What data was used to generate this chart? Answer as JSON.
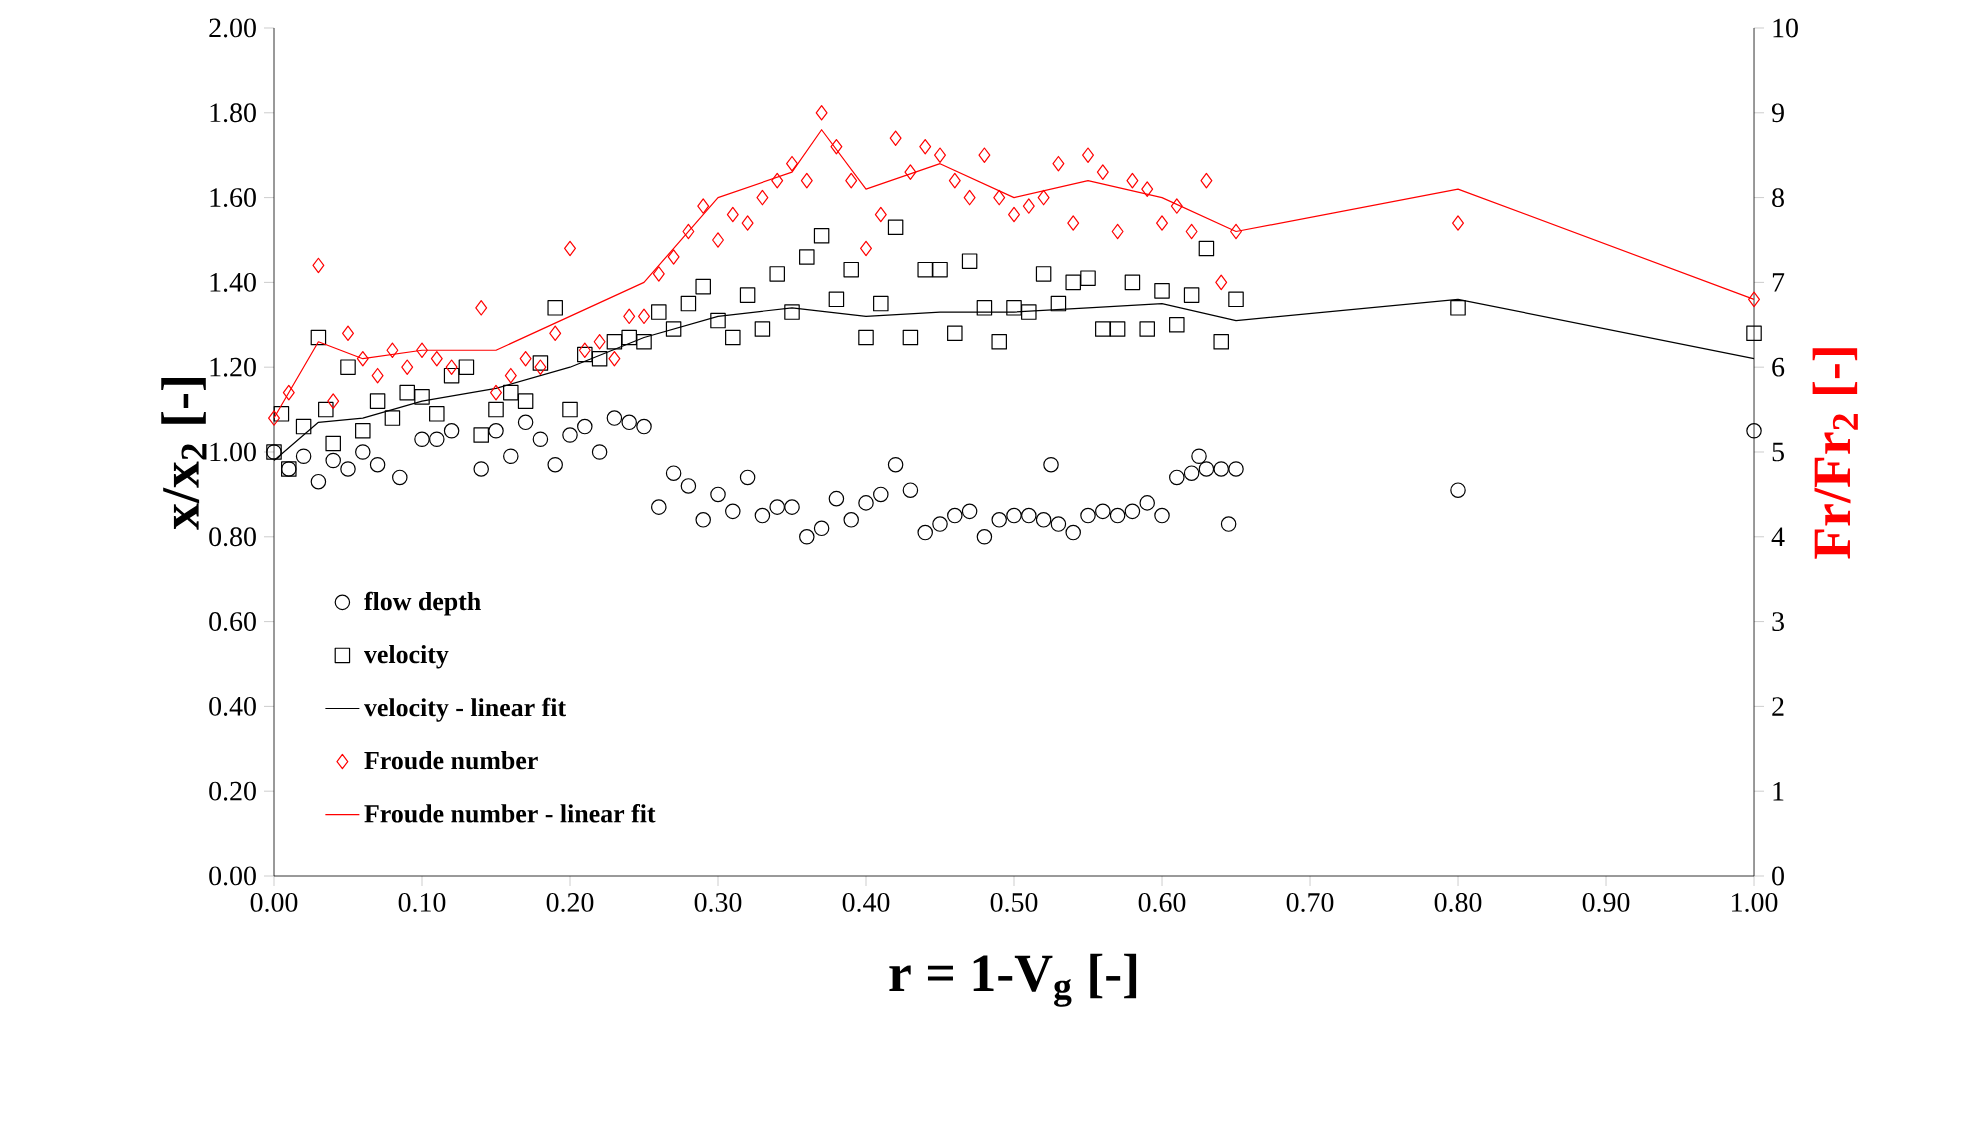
{
  "chart_data": {
    "type": "scatter",
    "xlabel": "r = 1-V$_{g}$  [-]",
    "ylabel": "x/x$_{2}$ [-]",
    "y2label": "Fr/Fr$_{2}$ [-]",
    "xlim": [
      0,
      1
    ],
    "ylim": [
      0,
      2
    ],
    "y2lim": [
      0,
      10
    ],
    "xticks": [
      {
        "value": 0,
        "label": "0.00"
      },
      {
        "value": 0.1,
        "label": "0.10"
      },
      {
        "value": 0.2,
        "label": "0.20"
      },
      {
        "value": 0.3,
        "label": "0.30"
      },
      {
        "value": 0.4,
        "label": "0.40"
      },
      {
        "value": 0.5,
        "label": "0.50"
      },
      {
        "value": 0.6,
        "label": "0.60"
      },
      {
        "value": 0.7,
        "label": "0.70"
      },
      {
        "value": 0.8,
        "label": "0.80"
      },
      {
        "value": 0.9,
        "label": "0.90"
      },
      {
        "value": 1,
        "label": "1.00"
      }
    ],
    "yticks": [
      {
        "value": 0,
        "label": "0.00"
      },
      {
        "value": 0.2,
        "label": "0.20"
      },
      {
        "value": 0.4,
        "label": "0.40"
      },
      {
        "value": 0.6,
        "label": "0.60"
      },
      {
        "value": 0.8,
        "label": "0.80"
      },
      {
        "value": 1,
        "label": "1.00"
      },
      {
        "value": 1.2,
        "label": "1.20"
      },
      {
        "value": 1.4,
        "label": "1.40"
      },
      {
        "value": 1.6,
        "label": "1.60"
      },
      {
        "value": 1.8,
        "label": "1.80"
      },
      {
        "value": 2,
        "label": "2.00"
      }
    ],
    "y2ticks": [
      0,
      1,
      2,
      3,
      4,
      5,
      6,
      7,
      8,
      9,
      10
    ],
    "grid": false,
    "legend": "bottom left",
    "series": [
      {
        "name": "flow depth",
        "type": "scatter",
        "marker": "circle",
        "color": "#000000",
        "x": [
          0,
          0.01,
          0.02,
          0.03,
          0.04,
          0.05,
          0.06,
          0.07,
          0.085,
          0.1,
          0.11,
          0.12,
          0.14,
          0.15,
          0.16,
          0.17,
          0.18,
          0.19,
          0.2,
          0.21,
          0.22,
          0.23,
          0.24,
          0.25,
          0.26,
          0.27,
          0.28,
          0.29,
          0.3,
          0.31,
          0.32,
          0.33,
          0.34,
          0.35,
          0.36,
          0.37,
          0.38,
          0.39,
          0.4,
          0.41,
          0.42,
          0.43,
          0.44,
          0.45,
          0.46,
          0.47,
          0.48,
          0.49,
          0.5,
          0.51,
          0.52,
          0.525,
          0.53,
          0.54,
          0.55,
          0.56,
          0.57,
          0.58,
          0.59,
          0.6,
          0.61,
          0.62,
          0.625,
          0.63,
          0.64,
          0.645,
          0.65,
          0.8,
          1
        ],
        "values": [
          1,
          0.96,
          0.99,
          0.93,
          0.98,
          0.96,
          1,
          0.97,
          0.94,
          1.03,
          1.03,
          1.05,
          0.96,
          1.05,
          0.99,
          1.07,
          1.03,
          0.97,
          1.04,
          1.06,
          1,
          1.08,
          1.07,
          1.06,
          0.87,
          0.95,
          0.92,
          0.84,
          0.9,
          0.86,
          0.94,
          0.85,
          0.87,
          0.87,
          0.8,
          0.82,
          0.89,
          0.84,
          0.88,
          0.9,
          0.97,
          0.91,
          0.81,
          0.83,
          0.85,
          0.86,
          0.8,
          0.84,
          0.85,
          0.85,
          0.84,
          0.97,
          0.83,
          0.81,
          0.85,
          0.86,
          0.85,
          0.86,
          0.88,
          0.85,
          0.94,
          0.95,
          0.99,
          0.96,
          0.96,
          0.83,
          0.96,
          0.91,
          1.05
        ]
      },
      {
        "name": "velocity",
        "type": "scatter",
        "marker": "square",
        "color": "#000000",
        "x": [
          0,
          0.005,
          0.01,
          0.02,
          0.03,
          0.035,
          0.04,
          0.05,
          0.06,
          0.07,
          0.08,
          0.09,
          0.1,
          0.11,
          0.12,
          0.13,
          0.14,
          0.15,
          0.16,
          0.17,
          0.18,
          0.19,
          0.2,
          0.21,
          0.22,
          0.23,
          0.24,
          0.25,
          0.26,
          0.27,
          0.28,
          0.29,
          0.3,
          0.31,
          0.32,
          0.33,
          0.34,
          0.35,
          0.36,
          0.37,
          0.38,
          0.39,
          0.4,
          0.41,
          0.42,
          0.43,
          0.44,
          0.45,
          0.46,
          0.47,
          0.48,
          0.49,
          0.5,
          0.51,
          0.52,
          0.53,
          0.54,
          0.55,
          0.56,
          0.57,
          0.58,
          0.59,
          0.6,
          0.61,
          0.62,
          0.63,
          0.64,
          0.65,
          0.8,
          1
        ],
        "values": [
          1,
          1.09,
          0.96,
          1.06,
          1.27,
          1.1,
          1.02,
          1.2,
          1.05,
          1.12,
          1.08,
          1.14,
          1.13,
          1.09,
          1.18,
          1.2,
          1.04,
          1.1,
          1.14,
          1.12,
          1.21,
          1.34,
          1.1,
          1.23,
          1.22,
          1.26,
          1.27,
          1.26,
          1.33,
          1.29,
          1.35,
          1.39,
          1.31,
          1.27,
          1.37,
          1.29,
          1.42,
          1.33,
          1.46,
          1.51,
          1.36,
          1.43,
          1.27,
          1.35,
          1.53,
          1.27,
          1.43,
          1.43,
          1.28,
          1.45,
          1.34,
          1.26,
          1.34,
          1.33,
          1.42,
          1.35,
          1.4,
          1.41,
          1.29,
          1.29,
          1.4,
          1.29,
          1.38,
          1.3,
          1.37,
          1.48,
          1.26,
          1.36,
          1.34,
          1.28
        ]
      },
      {
        "name": "velocity - linear fit",
        "type": "line",
        "marker": "none",
        "color": "#000000",
        "x": [
          0,
          0.03,
          0.06,
          0.1,
          0.15,
          0.2,
          0.25,
          0.3,
          0.35,
          0.4,
          0.45,
          0.5,
          0.55,
          0.6,
          0.65,
          0.8,
          1
        ],
        "values": [
          0.98,
          1.07,
          1.08,
          1.12,
          1.15,
          1.2,
          1.27,
          1.32,
          1.34,
          1.32,
          1.33,
          1.33,
          1.34,
          1.35,
          1.31,
          1.36,
          1.22
        ]
      },
      {
        "name": "Froude number",
        "type": "scatter",
        "marker": "diamond",
        "color": "#ff0000",
        "axis": "y2",
        "x": [
          0,
          0.01,
          0.03,
          0.04,
          0.05,
          0.06,
          0.07,
          0.08,
          0.09,
          0.1,
          0.11,
          0.12,
          0.14,
          0.15,
          0.16,
          0.17,
          0.18,
          0.19,
          0.2,
          0.21,
          0.22,
          0.23,
          0.24,
          0.25,
          0.26,
          0.27,
          0.28,
          0.29,
          0.3,
          0.31,
          0.32,
          0.33,
          0.34,
          0.35,
          0.36,
          0.37,
          0.38,
          0.39,
          0.4,
          0.41,
          0.42,
          0.43,
          0.44,
          0.45,
          0.46,
          0.47,
          0.48,
          0.49,
          0.5,
          0.51,
          0.52,
          0.53,
          0.54,
          0.55,
          0.56,
          0.57,
          0.58,
          0.59,
          0.6,
          0.61,
          0.62,
          0.63,
          0.64,
          0.65,
          0.8,
          1
        ],
        "values": [
          5.4,
          5.7,
          7.2,
          5.6,
          6.4,
          6.1,
          5.9,
          6.2,
          6,
          6.2,
          6.1,
          6,
          6.7,
          5.7,
          5.9,
          6.1,
          6,
          6.4,
          7.4,
          6.2,
          6.3,
          6.1,
          6.6,
          6.6,
          7.1,
          7.3,
          7.6,
          7.9,
          7.5,
          7.8,
          7.7,
          8,
          8.2,
          8.4,
          8.2,
          9,
          8.6,
          8.2,
          7.4,
          7.8,
          8.7,
          8.3,
          8.6,
          8.5,
          8.2,
          8,
          8.5,
          8,
          7.8,
          7.9,
          8,
          8.4,
          7.7,
          8.5,
          8.3,
          7.6,
          8.2,
          8.1,
          7.7,
          7.9,
          7.6,
          8.2,
          7,
          7.6,
          7.7,
          6.8
        ]
      },
      {
        "name": "Froude number - linear fit",
        "type": "line",
        "marker": "none",
        "color": "#ff0000",
        "axis": "y2",
        "x": [
          0,
          0.03,
          0.06,
          0.1,
          0.15,
          0.2,
          0.25,
          0.3,
          0.35,
          0.37,
          0.4,
          0.45,
          0.5,
          0.55,
          0.6,
          0.65,
          0.8,
          1
        ],
        "values": [
          5.4,
          6.3,
          6.1,
          6.2,
          6.2,
          6.6,
          7,
          8,
          8.3,
          8.8,
          8.1,
          8.4,
          8,
          8.2,
          8,
          7.6,
          8.1,
          6.8
        ]
      }
    ]
  }
}
